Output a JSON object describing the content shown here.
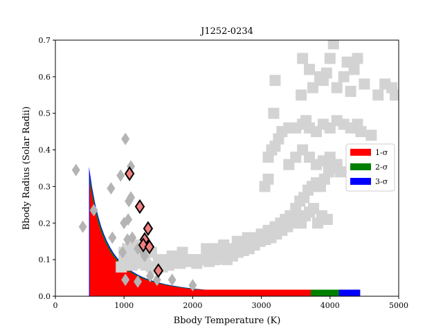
{
  "chart_data": {
    "type": "scatter",
    "title": "J1252-0234",
    "xlabel": "Bbody Temperature (K)",
    "ylabel": "Bbody Radius (Solar Radii)",
    "xlim": [
      0,
      5000
    ],
    "ylim": [
      0,
      0.7
    ],
    "xticks": [
      0,
      1000,
      2000,
      3000,
      4000,
      5000
    ],
    "yticks": [
      0.0,
      0.1,
      0.2,
      0.3,
      0.4,
      0.5,
      0.6,
      0.7
    ],
    "xtick_labels": [
      "0",
      "1000",
      "2000",
      "3000",
      "4000",
      "5000"
    ],
    "ytick_labels": [
      "0.0",
      "0.1",
      "0.2",
      "0.3",
      "0.4",
      "0.5",
      "0.6",
      "0.7"
    ],
    "grid": false,
    "legend": {
      "position": "center-right",
      "entries": [
        {
          "label": "1-σ",
          "color": "#ff0000"
        },
        {
          "label": "2-σ",
          "color": "#008000"
        },
        {
          "label": "3-σ",
          "color": "#0000ff"
        }
      ]
    },
    "regions": [
      {
        "name": "3-σ",
        "color": "#0000ff",
        "t_min": 490,
        "t_max": 4440,
        "amp": 85,
        "min_r": 0.018
      },
      {
        "name": "2-σ",
        "color": "#008000",
        "t_min": 500,
        "t_max": 4130,
        "amp": 82,
        "min_r": 0.018
      },
      {
        "name": "1-σ",
        "color": "#ff0000",
        "t_min": 500,
        "t_max": 3720,
        "amp": 78,
        "min_r": 0.018
      }
    ],
    "gray_squares": {
      "color": "#d3d3d3",
      "points": [
        [
          960,
          0.08
        ],
        [
          1000,
          0.09
        ],
        [
          1050,
          0.085
        ],
        [
          1120,
          0.085
        ],
        [
          1180,
          0.095
        ],
        [
          1250,
          0.09
        ],
        [
          1320,
          0.085
        ],
        [
          1400,
          0.08
        ],
        [
          1480,
          0.075
        ],
        [
          1560,
          0.08
        ],
        [
          1650,
          0.085
        ],
        [
          1740,
          0.09
        ],
        [
          1820,
          0.09
        ],
        [
          1900,
          0.095
        ],
        [
          1980,
          0.1
        ],
        [
          2060,
          0.09
        ],
        [
          2150,
          0.1
        ],
        [
          2240,
          0.095
        ],
        [
          2330,
          0.1
        ],
        [
          2420,
          0.105
        ],
        [
          2500,
          0.1
        ],
        [
          2580,
          0.11
        ],
        [
          2660,
          0.12
        ],
        [
          2740,
          0.125
        ],
        [
          2820,
          0.13
        ],
        [
          2900,
          0.14
        ],
        [
          2980,
          0.15
        ],
        [
          3060,
          0.155
        ],
        [
          3140,
          0.16
        ],
        [
          3220,
          0.17
        ],
        [
          3300,
          0.18
        ],
        [
          3380,
          0.19
        ],
        [
          3450,
          0.2
        ],
        [
          3520,
          0.21
        ],
        [
          3580,
          0.2
        ],
        [
          3640,
          0.22
        ],
        [
          3700,
          0.23
        ],
        [
          3760,
          0.24
        ],
        [
          3820,
          0.2
        ],
        [
          3880,
          0.22
        ],
        [
          3960,
          0.21
        ],
        [
          2100,
          0.1
        ],
        [
          2200,
          0.11
        ],
        [
          2300,
          0.105
        ],
        [
          2400,
          0.12
        ],
        [
          2560,
          0.13
        ],
        [
          2700,
          0.14
        ],
        [
          2860,
          0.16
        ],
        [
          3000,
          0.17
        ],
        [
          3100,
          0.18
        ],
        [
          3200,
          0.19
        ],
        [
          3280,
          0.2
        ],
        [
          3350,
          0.21
        ],
        [
          3420,
          0.22
        ],
        [
          3500,
          0.24
        ],
        [
          3560,
          0.26
        ],
        [
          3620,
          0.27
        ],
        [
          3680,
          0.29
        ],
        [
          3740,
          0.3
        ],
        [
          3800,
          0.31
        ],
        [
          3860,
          0.3
        ],
        [
          3920,
          0.32
        ],
        [
          3980,
          0.34
        ],
        [
          4050,
          0.36
        ],
        [
          4100,
          0.35
        ],
        [
          3100,
          0.38
        ],
        [
          3150,
          0.4
        ],
        [
          3200,
          0.41
        ],
        [
          3250,
          0.43
        ],
        [
          3300,
          0.45
        ],
        [
          3500,
          0.46
        ],
        [
          3600,
          0.47
        ],
        [
          3650,
          0.48
        ],
        [
          3700,
          0.46
        ],
        [
          3800,
          0.45
        ],
        [
          3900,
          0.47
        ],
        [
          4000,
          0.46
        ],
        [
          4100,
          0.48
        ],
        [
          4200,
          0.47
        ],
        [
          4300,
          0.46
        ],
        [
          4400,
          0.47
        ],
        [
          4450,
          0.45
        ],
        [
          4600,
          0.44
        ],
        [
          3580,
          0.55
        ],
        [
          3750,
          0.57
        ],
        [
          3900,
          0.59
        ],
        [
          3950,
          0.61
        ],
        [
          4000,
          0.65
        ],
        [
          4100,
          0.57
        ],
        [
          4200,
          0.6
        ],
        [
          4250,
          0.64
        ],
        [
          4350,
          0.62
        ],
        [
          4400,
          0.65
        ],
        [
          4300,
          0.56
        ],
        [
          4500,
          0.58
        ],
        [
          4700,
          0.55
        ],
        [
          4800,
          0.58
        ],
        [
          4900,
          0.57
        ],
        [
          4950,
          0.55
        ],
        [
          3600,
          0.65
        ],
        [
          3850,
          0.6
        ],
        [
          3700,
          0.62
        ],
        [
          4050,
          0.69
        ],
        [
          3200,
          0.59
        ],
        [
          3180,
          0.5
        ],
        [
          3400,
          0.46
        ],
        [
          3050,
          0.3
        ],
        [
          3100,
          0.32
        ],
        [
          3400,
          0.36
        ],
        [
          3500,
          0.38
        ],
        [
          3600,
          0.4
        ],
        [
          3700,
          0.38
        ],
        [
          3800,
          0.36
        ],
        [
          3900,
          0.37
        ],
        [
          4000,
          0.38
        ],
        [
          4100,
          0.36
        ],
        [
          4150,
          0.34
        ],
        [
          1000,
          0.12
        ],
        [
          1050,
          0.13
        ],
        [
          1150,
          0.14
        ],
        [
          1200,
          0.12
        ],
        [
          1250,
          0.14
        ],
        [
          1100,
          0.1
        ],
        [
          1300,
          0.11
        ],
        [
          1400,
          0.12
        ],
        [
          1500,
          0.1
        ],
        [
          1600,
          0.1
        ],
        [
          1700,
          0.11
        ],
        [
          1850,
          0.12
        ],
        [
          2200,
          0.13
        ],
        [
          2350,
          0.13
        ],
        [
          2450,
          0.14
        ],
        [
          2650,
          0.15
        ],
        [
          2800,
          0.16
        ]
      ]
    },
    "gray_diamonds": {
      "color": "#b4b4b4",
      "points": [
        [
          300,
          0.345
        ],
        [
          400,
          0.19
        ],
        [
          560,
          0.235
        ],
        [
          810,
          0.295
        ],
        [
          830,
          0.16
        ],
        [
          950,
          0.33
        ],
        [
          1020,
          0.43
        ],
        [
          1100,
          0.355
        ],
        [
          1070,
          0.26
        ],
        [
          1100,
          0.27
        ],
        [
          1000,
          0.2
        ],
        [
          1060,
          0.21
        ],
        [
          980,
          0.12
        ],
        [
          1050,
          0.155
        ],
        [
          1120,
          0.16
        ],
        [
          1200,
          0.13
        ],
        [
          1280,
          0.12
        ],
        [
          1300,
          0.11
        ],
        [
          1020,
          0.045
        ],
        [
          1200,
          0.04
        ],
        [
          1380,
          0.055
        ],
        [
          1480,
          0.045
        ],
        [
          1700,
          0.045
        ],
        [
          2000,
          0.03
        ]
      ]
    },
    "highlight_diamonds": {
      "fill": "#f08080",
      "edge": "#000000",
      "points": [
        [
          1080,
          0.335
        ],
        [
          1230,
          0.245
        ],
        [
          1350,
          0.185
        ],
        [
          1300,
          0.155
        ],
        [
          1280,
          0.14
        ],
        [
          1370,
          0.135
        ],
        [
          1500,
          0.07
        ]
      ]
    }
  }
}
